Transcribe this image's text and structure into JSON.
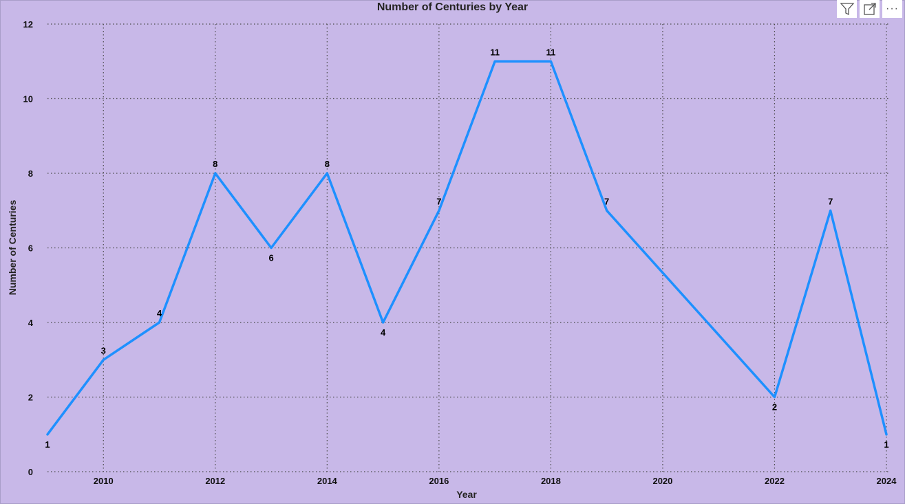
{
  "toolbar": {
    "icons": [
      "filter-icon",
      "focus-mode-icon",
      "more-options-icon"
    ],
    "more_label": "···"
  },
  "colors": {
    "background": "#c8b8e8",
    "line": "#1e90ff",
    "grid": "#4a4a4a"
  },
  "chart_data": {
    "type": "line",
    "title": "Number of Centuries by Year",
    "xlabel": "Year",
    "ylabel": "Number of Centuries",
    "x": [
      2009,
      2010,
      2011,
      2012,
      2013,
      2014,
      2015,
      2016,
      2017,
      2018,
      2019,
      2022,
      2023,
      2024
    ],
    "series": [
      {
        "values": [
          1,
          3,
          4,
          8,
          6,
          8,
          4,
          7,
          11,
          11,
          7,
          2,
          7,
          1
        ]
      }
    ],
    "xlim": [
      2009,
      2024
    ],
    "ylim": [
      0,
      12
    ],
    "xticks": [
      2010,
      2012,
      2014,
      2016,
      2018,
      2020,
      2022,
      2024
    ],
    "yticks": [
      0,
      2,
      4,
      6,
      8,
      10,
      12
    ],
    "grid": true,
    "data_labels": true
  }
}
